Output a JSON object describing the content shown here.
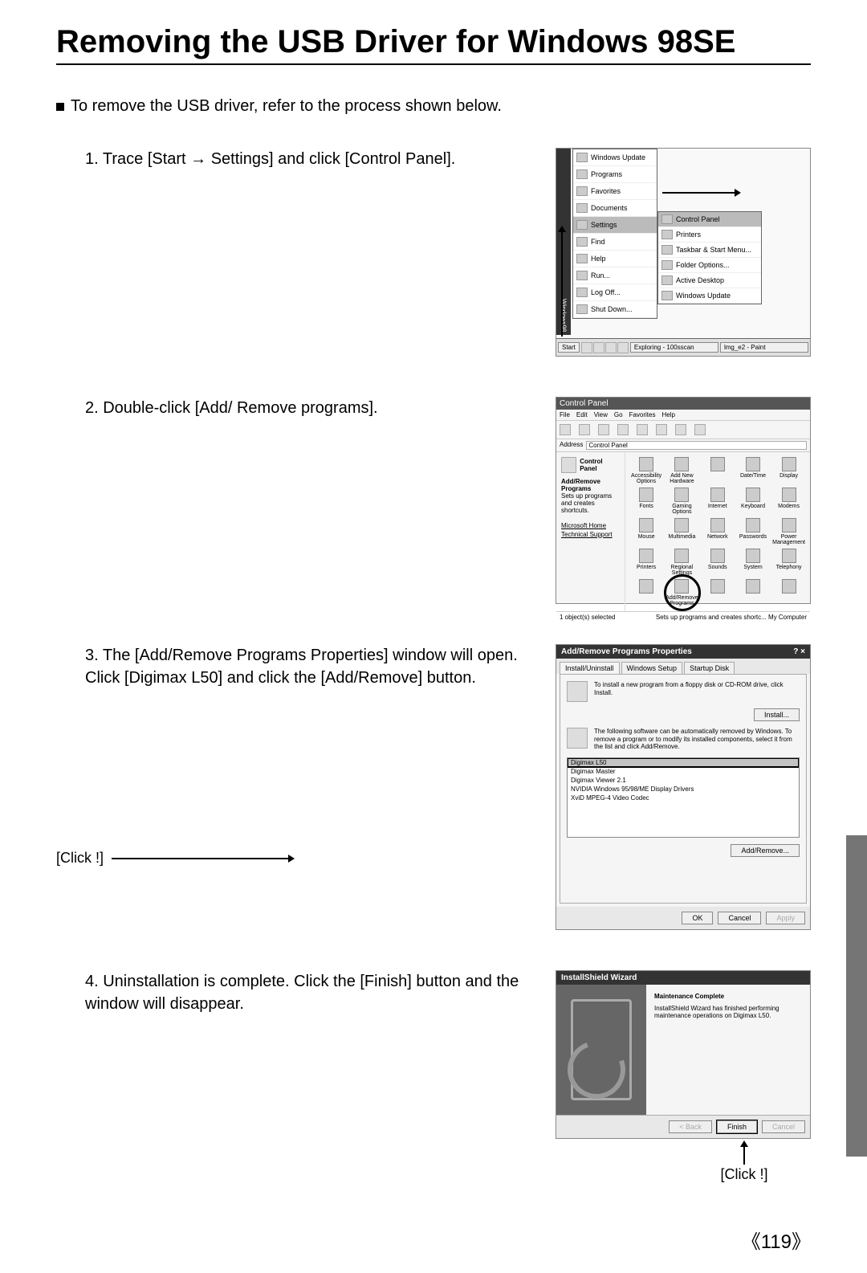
{
  "page": {
    "title": "Removing the USB Driver for Windows 98SE",
    "intro": "To remove the USB driver, refer to the process shown below.",
    "page_number": "《119》"
  },
  "steps": {
    "s1": {
      "text": "1. Trace [Start → Settings] and click [Control Panel]."
    },
    "s2": {
      "text": "2. Double-click [Add/ Remove programs]."
    },
    "s3": {
      "text": "3. The [Add/Remove Programs Properties] window will open. Click [Digimax L50] and click the [Add/Remove] button.",
      "click_label": "[Click !]"
    },
    "s4": {
      "text": "4. Uninstallation is complete. Click the [Finish] button and the window will disappear.",
      "click_label": "[Click !]"
    }
  },
  "start_menu": {
    "side_label": "Windows98",
    "items": [
      "Windows Update",
      "Programs",
      "Favorites",
      "Documents",
      "Settings",
      "Find",
      "Help",
      "Run...",
      "Log Off...",
      "Shut Down..."
    ],
    "settings_index": 4,
    "submenu": [
      "Control Panel",
      "Printers",
      "Taskbar & Start Menu...",
      "Folder Options...",
      "Active Desktop",
      "Windows Update"
    ],
    "taskbar": {
      "start": "Start",
      "task1": "Exploring - 100sscan",
      "task2": "lmg_e2 - Paint"
    }
  },
  "control_panel": {
    "title": "Control Panel",
    "menu": [
      "File",
      "Edit",
      "View",
      "Go",
      "Favorites",
      "Help"
    ],
    "address_label": "Address",
    "address_value": "Control Panel",
    "side_title": "Control Panel",
    "side_sub_bold": "Add/Remove Programs",
    "side_sub_text": "Sets up programs and creates shortcuts.",
    "side_links": [
      "Microsoft Home",
      "Technical Support"
    ],
    "icons": [
      "Accessibility Options",
      "Add New Hardware",
      "",
      "Date/Time",
      "Display",
      "Fonts",
      "Gaming Options",
      "Internet",
      "Keyboard",
      "Modems",
      "Mouse",
      "Multimedia",
      "Network",
      "Passwords",
      "Power Management",
      "Printers",
      "Regional Settings",
      "Sounds",
      "System",
      "Telephony",
      "",
      "Add/Remove Programs",
      "",
      "",
      ""
    ],
    "highlight_index": 21,
    "status_left": "1 object(s) selected",
    "status_right": "Sets up programs and creates shortc...  My Computer"
  },
  "add_remove": {
    "title": "Add/Remove Programs Properties",
    "close_glyphs": "? ×",
    "tabs": [
      "Install/Uninstall",
      "Windows Setup",
      "Startup Disk"
    ],
    "section1": "To install a new program from a floppy disk or CD-ROM drive, click Install.",
    "install_btn": "Install...",
    "section2": "The following software can be automatically removed by Windows. To remove a program or to modify its installed components, select it from the list and click Add/Remove.",
    "list": [
      "Digimax L50",
      "Digimax Master",
      "Digimax Viewer 2.1",
      "NVIDIA Windows 95/98/ME Display Drivers",
      "XviD MPEG-4 Video Codec"
    ],
    "selected_index": 0,
    "add_remove_btn": "Add/Remove...",
    "ok_btn": "OK",
    "cancel_btn": "Cancel",
    "apply_btn": "Apply"
  },
  "wizard": {
    "title": "InstallShield Wizard",
    "heading": "Maintenance Complete",
    "body": "InstallShield Wizard has finished performing maintenance operations on Digimax L50.",
    "back_btn": "< Back",
    "finish_btn": "Finish",
    "cancel_btn": "Cancel"
  }
}
